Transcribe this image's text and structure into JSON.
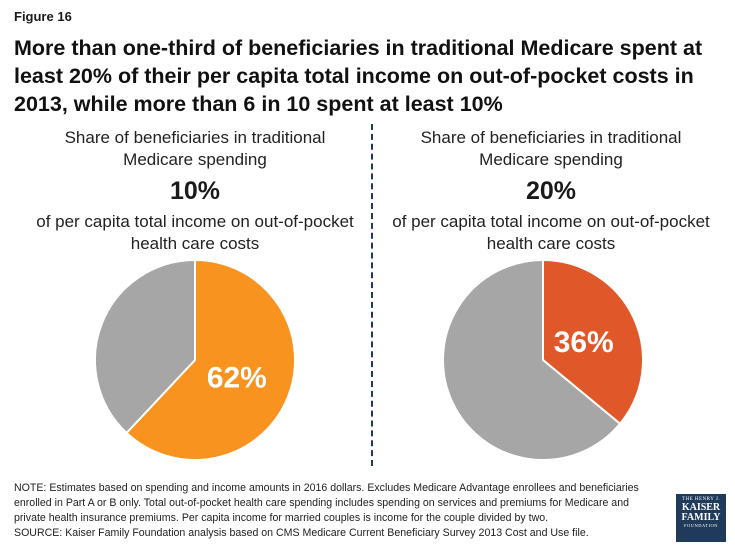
{
  "figure_label": "Figure 16",
  "title": "More than one-third of beneficiaries in traditional Medicare spent at least 20% of their per capita total income on out-of-pocket costs in 2013, while more than 6 in 10 spent at least 10%",
  "panels": [
    {
      "subtitle": "Share of beneficiaries in traditional Medicare spending",
      "threshold": "10%",
      "subtitle2": "of per capita total income on out-of-pocket health care costs"
    },
    {
      "subtitle": "Share of beneficiaries in traditional Medicare spending",
      "threshold": "20%",
      "subtitle2": "of per capita total income on out-of-pocket health care costs"
    }
  ],
  "chart_data": [
    {
      "type": "pie",
      "title": "10%",
      "values": [
        62,
        38
      ],
      "data_labels": [
        "62%",
        ""
      ],
      "colors": [
        "#F7931E",
        "#A6A6A6"
      ]
    },
    {
      "type": "pie",
      "title": "20%",
      "values": [
        36,
        64
      ],
      "data_labels": [
        "36%",
        ""
      ],
      "colors": [
        "#E0582A",
        "#A6A6A6"
      ]
    }
  ],
  "note": "NOTE: Estimates based on spending and income amounts in 2016 dollars. Excludes Medicare Advantage enrollees and beneficiaries enrolled in Part A or B only. Total out-of-pocket health care spending includes spending on services and premiums for Medicare and private health insurance premiums. Per capita income for married couples is income for the couple divided by two.",
  "source": "SOURCE: Kaiser Family Foundation analysis based on CMS Medicare Current Beneficiary Survey 2013 Cost and Use file.",
  "logo": {
    "line1": "THE HENRY J.",
    "line2a": "KAISER",
    "line2b": "FAMILY",
    "line3": "FOUNDATION"
  }
}
